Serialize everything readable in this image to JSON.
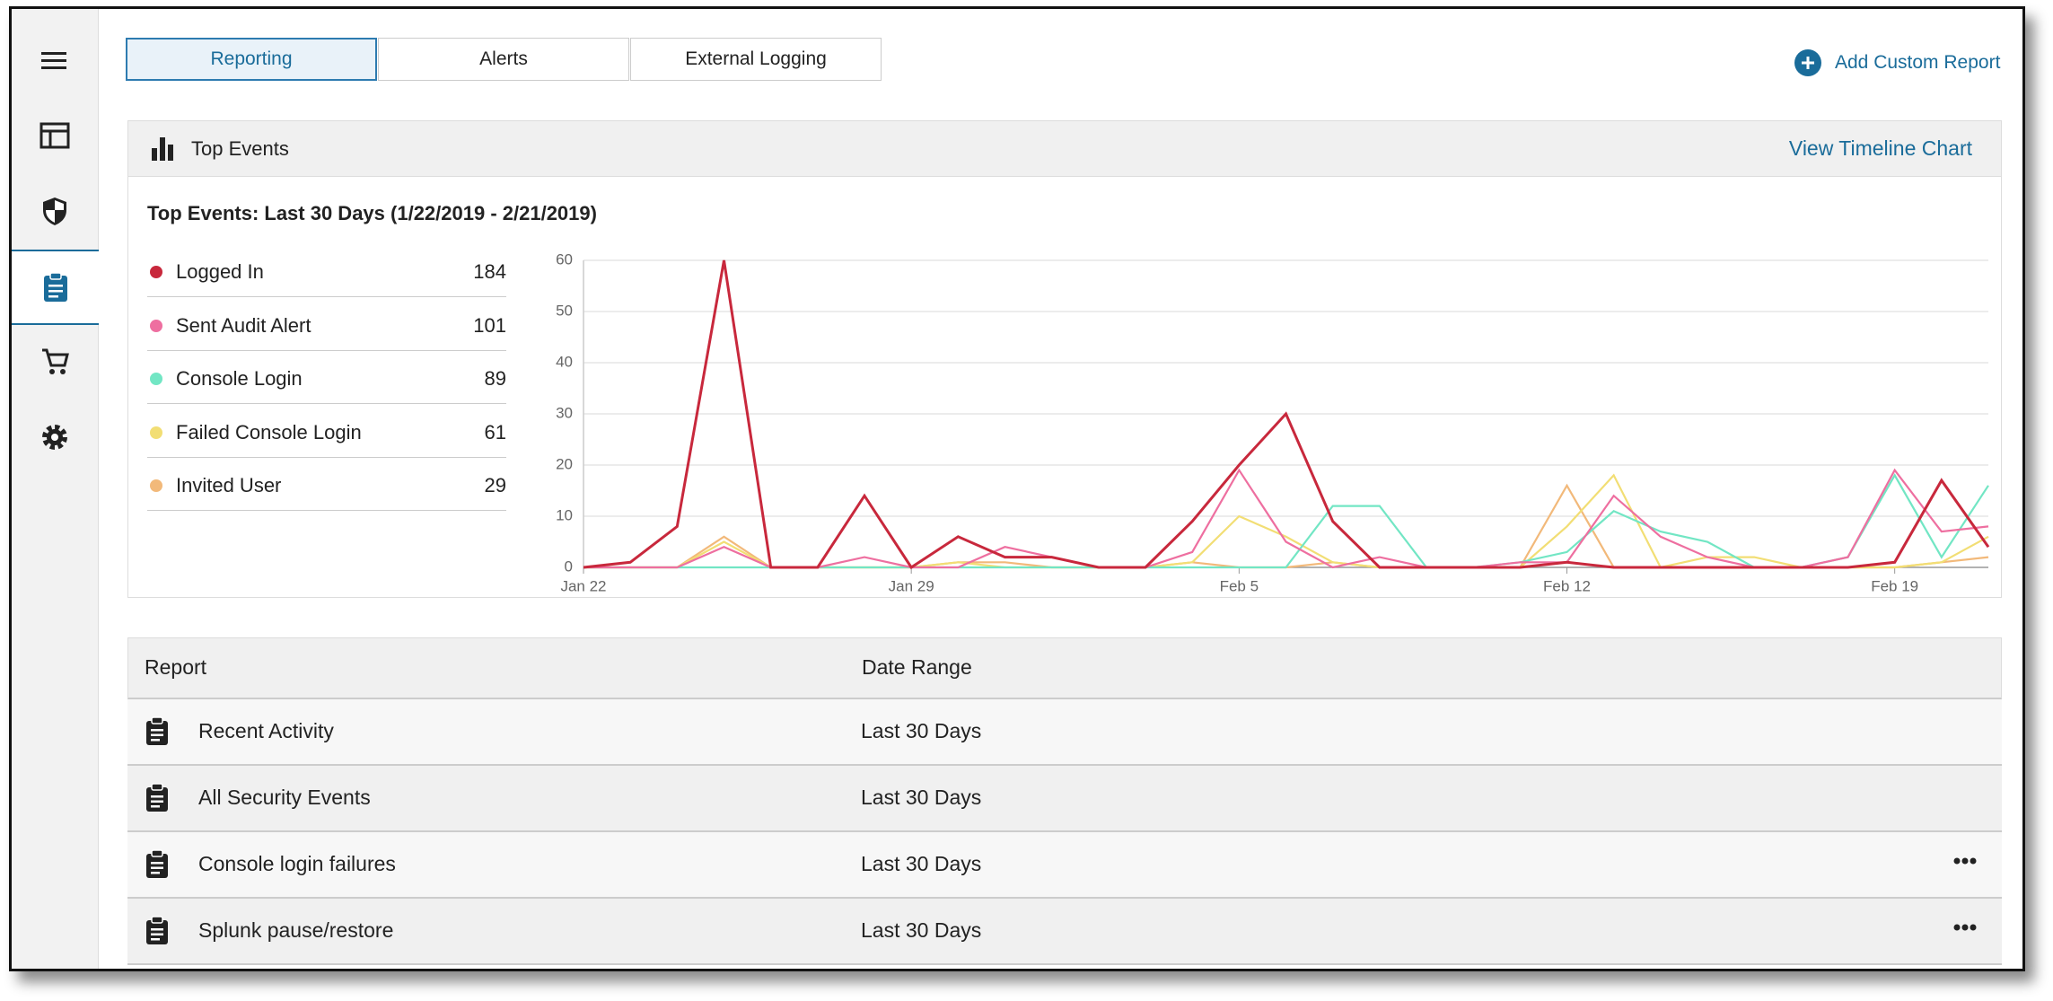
{
  "tabs": [
    "Reporting",
    "Alerts",
    "External Logging"
  ],
  "add_button": "Add Custom Report",
  "panel": {
    "title": "Top Events",
    "link": "View Timeline Chart"
  },
  "chart_data": {
    "type": "line",
    "title": "Top Events: Last 30 Days (1/22/2019 - 2/21/2019)",
    "categories": [
      "Jan 22",
      null,
      null,
      null,
      null,
      null,
      null,
      "Jan 29",
      null,
      null,
      null,
      null,
      null,
      null,
      "Feb 5",
      null,
      null,
      null,
      null,
      null,
      null,
      "Feb 12",
      null,
      null,
      null,
      null,
      null,
      null,
      "Feb 19",
      null,
      null
    ],
    "series": [
      {
        "name": "Logged In",
        "color": "#c8283c",
        "total": 184,
        "values": [
          0,
          1,
          8,
          60,
          0,
          0,
          14,
          0,
          6,
          2,
          2,
          0,
          0,
          9,
          20,
          30,
          9,
          0,
          0,
          0,
          0,
          1,
          0,
          0,
          0,
          0,
          0,
          0,
          1,
          17,
          4
        ]
      },
      {
        "name": "Sent Audit Alert",
        "color": "#ee6fa0",
        "total": 101,
        "values": [
          0,
          0,
          0,
          4,
          0,
          0,
          2,
          0,
          0,
          4,
          2,
          0,
          0,
          3,
          19,
          5,
          0,
          2,
          0,
          0,
          1,
          1,
          14,
          6,
          2,
          0,
          0,
          2,
          19,
          7,
          8
        ]
      },
      {
        "name": "Console Login",
        "color": "#72e6c4",
        "total": 89,
        "values": [
          0,
          0,
          0,
          0,
          0,
          0,
          0,
          0,
          0,
          0,
          0,
          0,
          0,
          0,
          0,
          0,
          12,
          12,
          0,
          0,
          1,
          3,
          11,
          7,
          5,
          0,
          0,
          2,
          18,
          2,
          16
        ]
      },
      {
        "name": "Failed Console Login",
        "color": "#f2de74",
        "total": 61,
        "values": [
          0,
          0,
          0,
          5,
          0,
          0,
          0,
          0,
          1,
          0,
          0,
          0,
          0,
          1,
          10,
          6,
          1,
          0,
          0,
          0,
          0,
          8,
          18,
          0,
          2,
          2,
          0,
          0,
          0,
          1,
          6
        ]
      },
      {
        "name": "Invited User",
        "color": "#f2b97a",
        "total": 29,
        "values": [
          0,
          0,
          0,
          6,
          0,
          0,
          0,
          0,
          1,
          1,
          0,
          0,
          0,
          1,
          0,
          0,
          1,
          0,
          0,
          0,
          0,
          16,
          0,
          0,
          0,
          0,
          0,
          0,
          0,
          1,
          2
        ]
      }
    ],
    "ylim": [
      0,
      60
    ],
    "yticks": [
      0,
      10,
      20,
      30,
      40,
      50,
      60
    ],
    "grid": true
  },
  "table": {
    "columns": [
      "Report",
      "Date Range"
    ],
    "rows": [
      [
        "Recent Activity",
        "Last 30 Days"
      ],
      [
        "All Security Events",
        "Last 30 Days"
      ],
      [
        "Console login failures",
        "Last 30 Days"
      ],
      [
        "Splunk pause/restore",
        "Last 30 Days"
      ]
    ]
  }
}
